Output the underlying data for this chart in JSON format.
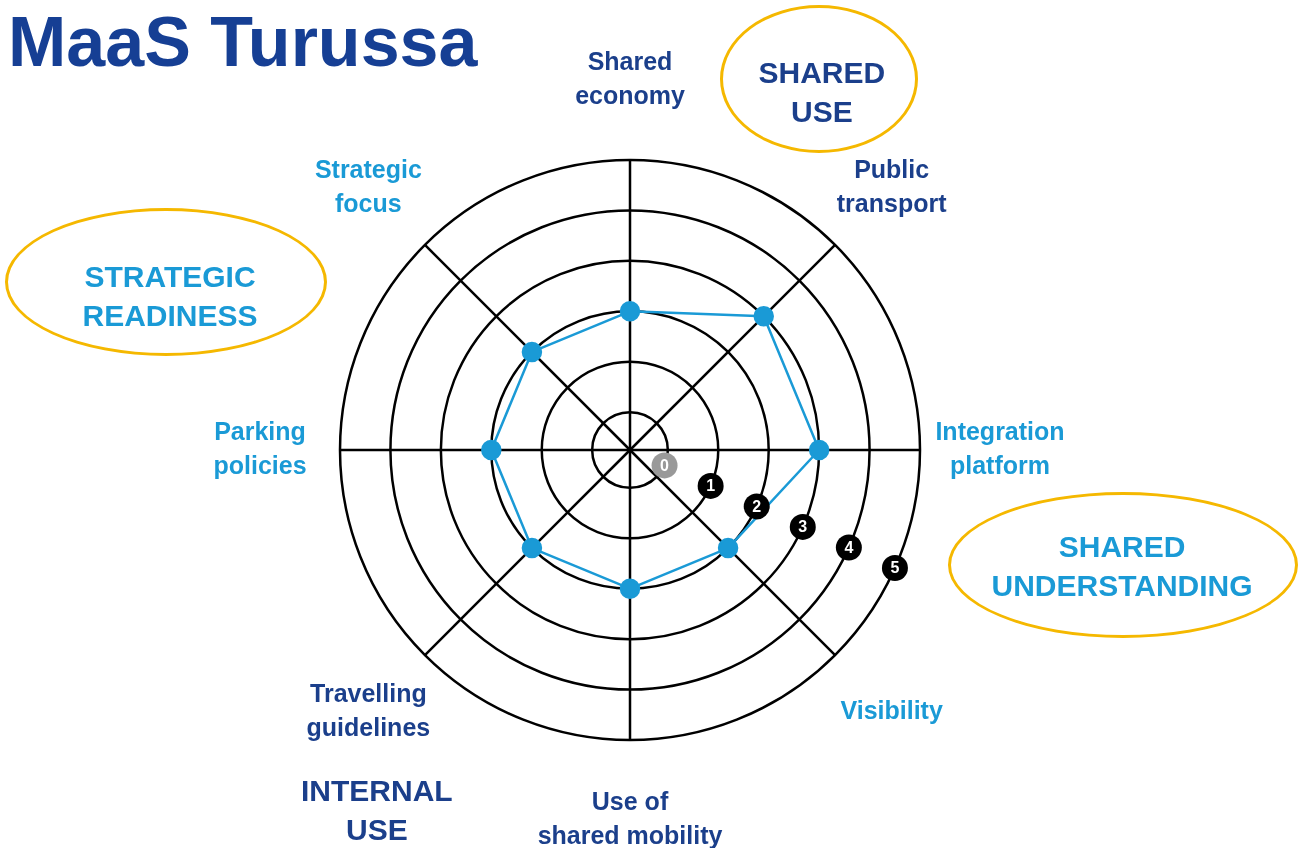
{
  "chart_data": {
    "type": "radar",
    "title": "MaaS Turussa",
    "categories": [
      "Shared\neconomy",
      "Public\ntransport",
      "Integration\nplatform",
      "Visibility",
      "Use of\nshared mobility",
      "Travelling\nguidelines",
      "Parking\npolicies",
      "Strategic\nfocus"
    ],
    "series": [
      {
        "color": "#1a9ad6",
        "values": [
          2,
          3,
          3,
          2,
          2,
          2,
          2,
          2
        ]
      }
    ],
    "ylim": [
      -0.75,
      5
    ],
    "yticks": [
      0,
      1,
      2,
      3,
      4,
      5
    ],
    "grid": true,
    "marker": "circle",
    "legend": false,
    "annotations": [
      "SHARED\nUSE",
      "STRATEGIC\nREADINESS",
      "SHARED\nUNDERSTANDING",
      "INTERNAL\nUSE"
    ]
  }
}
